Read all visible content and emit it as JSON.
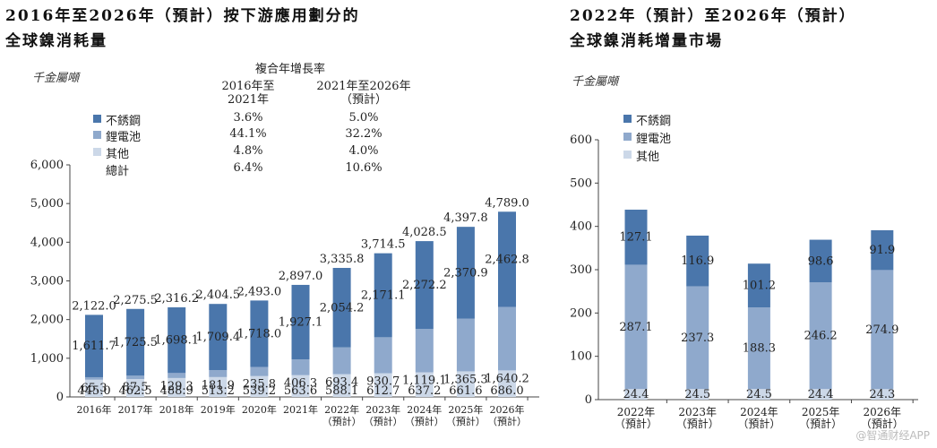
{
  "colors": {
    "stainless": "#4a76ab",
    "battery": "#8fa9cc",
    "other": "#ccd8e8",
    "axis": "#444444"
  },
  "left": {
    "title_line1": "2016年至2026年（預計）按下游應用劃分的",
    "title_line2": "全球鎳消耗量",
    "unit": "千金屬噸",
    "cagr_header": "複合年增長率",
    "col1_header_l1": "2016年至",
    "col1_header_l2": "2021年",
    "col2_header_l1": "2021年至2026年",
    "col2_header_l2": "（預計）",
    "rows": [
      {
        "label": "不銹鋼",
        "col1": "3.6%",
        "col2": "5.0%",
        "swatch": "stainless"
      },
      {
        "label": "鋰電池",
        "col1": "44.1%",
        "col2": "32.2%",
        "swatch": "battery"
      },
      {
        "label": "其他",
        "col1": "4.8%",
        "col2": "4.0%",
        "swatch": "other"
      },
      {
        "label": "總計",
        "col1": "6.4%",
        "col2": "10.6%",
        "swatch": ""
      }
    ]
  },
  "right": {
    "title_line1": "2022年（預計）至2026年（預計）",
    "title_line2": "全球鎳消耗增量市場",
    "unit": "千金屬噸",
    "legend": [
      "不銹鋼",
      "鋰電池",
      "其他"
    ]
  },
  "watermark": "@智通财经APP",
  "chart_data": [
    {
      "type": "bar",
      "stacked": true,
      "title": "2016年至2026年（預計）按下游應用劃分的全球鎳消耗量",
      "ylabel": "千金屬噸",
      "ylim": [
        0,
        6000
      ],
      "yticks": [
        "0",
        "1,000",
        "2,000",
        "3,000",
        "4,000",
        "5,000",
        "6,000"
      ],
      "ytick_values": [
        0,
        1000,
        2000,
        3000,
        4000,
        5000,
        6000
      ],
      "categories": [
        [
          "2016年"
        ],
        [
          "2017年"
        ],
        [
          "2018年"
        ],
        [
          "2019年"
        ],
        [
          "2020年"
        ],
        [
          "2021年"
        ],
        [
          "2022年",
          "（預計）"
        ],
        [
          "2023年",
          "（預計）"
        ],
        [
          "2024年",
          "（預計）"
        ],
        [
          "2025年",
          "（預計）"
        ],
        [
          "2026年",
          "（預計）"
        ]
      ],
      "series": [
        {
          "name": "其他",
          "key": "other",
          "values": [
            445.0,
            462.5,
            488.9,
            513.2,
            539.2,
            563.6,
            588.1,
            612.7,
            637.2,
            661.6,
            686.0
          ],
          "labels": [
            "445.0",
            "462.5",
            "488.9",
            "513.2",
            "539.2",
            "563.6",
            "588.1",
            "612.7",
            "637.2",
            "661.6",
            "686.0"
          ]
        },
        {
          "name": "鋰電池",
          "key": "battery",
          "values": [
            65.3,
            87.5,
            129.3,
            181.9,
            235.8,
            406.3,
            693.4,
            930.7,
            1119.1,
            1365.3,
            1640.2
          ],
          "labels": [
            "65.3",
            "87.5",
            "129.3",
            "181.9",
            "235.8",
            "406.3",
            "693.4",
            "930.7",
            "1,119.1",
            "1,365.3",
            "1,640.2"
          ]
        },
        {
          "name": "不銹鋼",
          "key": "stainless",
          "values": [
            1611.7,
            1725.5,
            1698.1,
            1709.4,
            1718.0,
            1927.1,
            2054.2,
            2171.1,
            2272.2,
            2370.9,
            2462.8
          ],
          "labels": [
            "1,611.7",
            "1,725.5",
            "1,698.1",
            "1,709.4",
            "1,718.0",
            "1,927.1",
            "2,054.2",
            "2,171.1",
            "2,272.2",
            "2,370.9",
            "2,462.8"
          ]
        }
      ],
      "totals": [
        2122.0,
        2275.5,
        2316.2,
        2404.5,
        2493.0,
        2897.0,
        3335.8,
        3714.5,
        4028.5,
        4397.8,
        4789.0
      ],
      "total_labels": [
        "2,122.0",
        "2,275.5",
        "2,316.2",
        "2,404.5",
        "2,493.0",
        "2,897.0",
        "3,335.8",
        "3,714.5",
        "4,028.5",
        "4,397.8",
        "4,789.0"
      ]
    },
    {
      "type": "bar",
      "stacked": true,
      "title": "2022年（預計）至2026年（預計）全球鎳消耗增量市場",
      "ylabel": "千金屬噸",
      "ylim": [
        0,
        600
      ],
      "yticks": [
        "0",
        "100",
        "200",
        "300",
        "400",
        "500",
        "600"
      ],
      "ytick_values": [
        0,
        100,
        200,
        300,
        400,
        500,
        600
      ],
      "categories": [
        [
          "2022年",
          "（預計）"
        ],
        [
          "2023年",
          "（預計）"
        ],
        [
          "2024年",
          "（預計）"
        ],
        [
          "2025年",
          "（預計）"
        ],
        [
          "2026年",
          "（預計）"
        ]
      ],
      "series": [
        {
          "name": "其他",
          "key": "other",
          "values": [
            24.4,
            24.5,
            24.5,
            24.4,
            24.3
          ],
          "labels": [
            "24.4",
            "24.5",
            "24.5",
            "24.4",
            "24.3"
          ]
        },
        {
          "name": "鋰電池",
          "key": "battery",
          "values": [
            287.1,
            237.3,
            188.3,
            246.2,
            274.9
          ],
          "labels": [
            "287.1",
            "237.3",
            "188.3",
            "246.2",
            "274.9"
          ]
        },
        {
          "name": "不銹鋼",
          "key": "stainless",
          "values": [
            127.1,
            116.9,
            101.2,
            98.6,
            91.9
          ],
          "labels": [
            "127.1",
            "116.9",
            "101.2",
            "98.6",
            "91.9"
          ]
        }
      ]
    }
  ]
}
